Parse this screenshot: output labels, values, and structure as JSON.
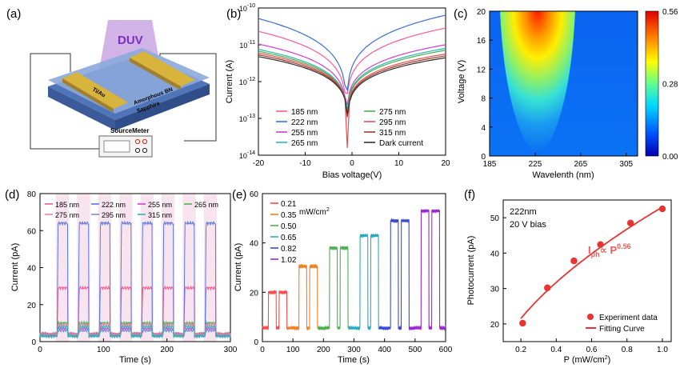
{
  "panels": {
    "a": {
      "label": "(a)",
      "beam_label": "DUV",
      "electrode_label": "Ti/Au",
      "layer_top": "Amorphous BN",
      "layer_bottom": "Sapphire",
      "meter_label": "SourceMeter",
      "colors": {
        "beam": "#b37bd6",
        "beam_text": "#7b2fc0",
        "gold": "#d8b43c",
        "layer_bn": "#6e8fc9",
        "layer_sapphire": "#4f74b8"
      }
    }
  },
  "chart_data": [
    {
      "id": "b",
      "panel_label": "(b)",
      "type": "line",
      "xlabel": "Bias voltage(V)",
      "ylabel": "Current (A)",
      "xlim": [
        -20,
        20
      ],
      "ylim_log10": [
        -14,
        -10
      ],
      "xticks": [
        "-20",
        "-10",
        "0",
        "10",
        "20"
      ],
      "yticks": [
        {
          "base": "10",
          "exp": "-14"
        },
        {
          "base": "10",
          "exp": "-13"
        },
        {
          "base": "10",
          "exp": "-12"
        },
        {
          "base": "10",
          "exp": "-11"
        },
        {
          "base": "10",
          "exp": "-10"
        }
      ],
      "series": [
        {
          "name": "185 nm",
          "color": "#ff5a96",
          "neg_end": -10.6,
          "pos_end": -10.55,
          "pos_mid": -11.0
        },
        {
          "name": "222 nm",
          "color": "#3b6fd6",
          "neg_end": -10.25,
          "pos_end": -10.2,
          "pos_mid": -10.6
        },
        {
          "name": "255 nm",
          "color": "#d23ed2",
          "neg_end": -10.95,
          "pos_end": -11.0,
          "pos_mid": -11.4
        },
        {
          "name": "265 nm",
          "color": "#2ab8b0",
          "neg_end": -11.1,
          "pos_end": -11.1,
          "pos_mid": -11.5
        },
        {
          "name": "275 nm",
          "color": "#4caf50",
          "neg_end": -11.15,
          "pos_end": -11.15,
          "pos_mid": -11.6
        },
        {
          "name": "295 nm",
          "color": "#e85050",
          "neg_end": -11.2,
          "pos_end": -11.25,
          "pos_mid": -11.7
        },
        {
          "name": "315 nm",
          "color": "#9b3a2b",
          "neg_end": -11.25,
          "pos_end": -11.3,
          "pos_mid": -11.75
        },
        {
          "name": "Dark current",
          "color": "#303030",
          "neg_end": -11.3,
          "pos_end": -11.35,
          "pos_mid": -11.8
        }
      ]
    },
    {
      "id": "c",
      "panel_label": "(c)",
      "type": "heatmap",
      "xlabel": "Wavelenth (nm)",
      "ylabel": "Voltage (V)",
      "xlim": [
        185,
        315
      ],
      "ylim": [
        0,
        20
      ],
      "xticks": [
        "185",
        "225",
        "265",
        "305"
      ],
      "yticks": [
        "0",
        "4",
        "8",
        "12",
        "16",
        "20"
      ],
      "colorbar_ticks": [
        "0.00",
        "0.28",
        "0.56"
      ],
      "zlim": [
        0,
        0.56
      ],
      "peak_wavelength": 222
    },
    {
      "id": "d",
      "panel_label": "(d)",
      "type": "line",
      "xlabel": "Time (s)",
      "ylabel": "Current (pA)",
      "xlim": [
        0,
        300
      ],
      "ylim": [
        0,
        80
      ],
      "xticks": [
        "0",
        "100",
        "200",
        "300"
      ],
      "yticks": [
        "0",
        "20",
        "40",
        "60",
        "80"
      ],
      "period_s": 33.3,
      "on_start_s": 27,
      "on_duration_s": 16.6,
      "pulses": 8,
      "series": [
        {
          "name": "185 nm",
          "color": "#ff5a96",
          "off": 4,
          "on": 29
        },
        {
          "name": "222 nm",
          "color": "#5a78e0",
          "off": 4,
          "on": 64
        },
        {
          "name": "255 nm",
          "color": "#d23ed2",
          "off": 3.5,
          "on": 7
        },
        {
          "name": "265 nm",
          "color": "#4caf50",
          "off": 4,
          "on": 10
        },
        {
          "name": "275 nm",
          "color": "#ff7aa8",
          "off": 4,
          "on": 9
        },
        {
          "name": "295 nm",
          "color": "#7a8ad6",
          "off": 3,
          "on": 6
        },
        {
          "name": "315 nm",
          "color": "#2ab8b0",
          "off": 3,
          "on": 8
        }
      ]
    },
    {
      "id": "e",
      "panel_label": "(e)",
      "type": "line",
      "xlabel": "Time (s)",
      "ylabel": "Current (pA)",
      "xlim": [
        0,
        600
      ],
      "ylim": [
        0,
        60
      ],
      "xticks": [
        "0",
        "100",
        "200",
        "300",
        "400",
        "500",
        "600"
      ],
      "yticks": [
        "0",
        "20",
        "40",
        "60"
      ],
      "unit_label": "mW/cm",
      "unit_sup": "2",
      "baseline": 5.5,
      "series": [
        {
          "name": "0.21",
          "color": "#ff4a4a",
          "level": 20,
          "on1": [
            20,
            45
          ],
          "on2": [
            55,
            80
          ]
        },
        {
          "name": "0.35",
          "color": "#f08020",
          "level": 30.5,
          "on1": [
            120,
            145
          ],
          "on2": [
            155,
            180
          ]
        },
        {
          "name": "0.50",
          "color": "#4caf50",
          "level": 38,
          "on1": [
            220,
            245
          ],
          "on2": [
            255,
            280
          ]
        },
        {
          "name": "0.65",
          "color": "#2aa8c0",
          "level": 43,
          "on1": [
            320,
            345
          ],
          "on2": [
            355,
            380
          ]
        },
        {
          "name": "0.82",
          "color": "#3a4ad0",
          "level": 49,
          "on1": [
            420,
            445
          ],
          "on2": [
            455,
            480
          ]
        },
        {
          "name": "1.02",
          "color": "#9a2ad0",
          "level": 53,
          "on1": [
            520,
            545
          ],
          "on2": [
            555,
            580
          ]
        }
      ]
    },
    {
      "id": "f",
      "panel_label": "(f)",
      "type": "scatter",
      "xlabel": "P (mW/cm",
      "xlabel_sup": "2",
      "xlabel_end": ")",
      "ylabel": "Photocurrent (pA)",
      "xlim": [
        0.1,
        1.05
      ],
      "ylim": [
        15,
        55
      ],
      "xticks": [
        "0.2",
        "0.4",
        "0.6",
        "0.8",
        "1.0"
      ],
      "yticks": [
        "20",
        "30",
        "40",
        "50"
      ],
      "note1": "222nm",
      "note2": "20 V bias",
      "formula_main": "I",
      "formula_sub": "ph",
      "formula_mid": "∝ P",
      "formula_sup": "0.56",
      "points_x": [
        0.21,
        0.35,
        0.5,
        0.65,
        0.82,
        1.0
      ],
      "points_y": [
        20.2,
        30.2,
        37.8,
        42.4,
        48.5,
        52.5
      ],
      "fit_a": 53.0,
      "fit_exp": 0.56,
      "legend_points": "Experiment data",
      "legend_fit": "Fitting Curve",
      "color": "#e8342f"
    }
  ]
}
